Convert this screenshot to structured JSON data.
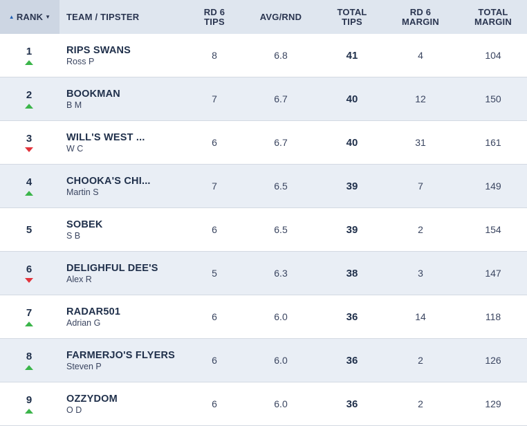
{
  "header": {
    "rank": "RANK",
    "team": "TEAM / TIPSTER",
    "rd_tips_1": "RD 6",
    "rd_tips_2": "TIPS",
    "avg": "AVG/RND",
    "total_1": "TOTAL",
    "total_2": "TIPS",
    "rd_margin_1": "RD 6",
    "rd_margin_2": "MARGIN",
    "total_margin_1": "TOTAL",
    "total_margin_2": "MARGIN"
  },
  "rows": [
    {
      "rank": "1",
      "trend": "up",
      "team": "RIPS SWANS",
      "tipster": "Ross P",
      "rd_tips": "8",
      "avg": "6.8",
      "total": "41",
      "rd_margin": "4",
      "total_margin": "104"
    },
    {
      "rank": "2",
      "trend": "up",
      "team": "BOOKMAN",
      "tipster": "B M",
      "rd_tips": "7",
      "avg": "6.7",
      "total": "40",
      "rd_margin": "12",
      "total_margin": "150"
    },
    {
      "rank": "3",
      "trend": "down",
      "team": "WILL'S WEST ...",
      "tipster": "W C",
      "rd_tips": "6",
      "avg": "6.7",
      "total": "40",
      "rd_margin": "31",
      "total_margin": "161"
    },
    {
      "rank": "4",
      "trend": "up",
      "team": "CHOOKA'S CHI...",
      "tipster": "Martin S",
      "rd_tips": "7",
      "avg": "6.5",
      "total": "39",
      "rd_margin": "7",
      "total_margin": "149"
    },
    {
      "rank": "5",
      "trend": "none",
      "team": "SOBEK",
      "tipster": "S B",
      "rd_tips": "6",
      "avg": "6.5",
      "total": "39",
      "rd_margin": "2",
      "total_margin": "154"
    },
    {
      "rank": "6",
      "trend": "down",
      "team": "DELIGHFUL DEE'S",
      "tipster": "Alex R",
      "rd_tips": "5",
      "avg": "6.3",
      "total": "38",
      "rd_margin": "3",
      "total_margin": "147"
    },
    {
      "rank": "7",
      "trend": "up",
      "team": "RADAR501",
      "tipster": "Adrian G",
      "rd_tips": "6",
      "avg": "6.0",
      "total": "36",
      "rd_margin": "14",
      "total_margin": "118"
    },
    {
      "rank": "8",
      "trend": "up",
      "team": "FARMERJO'S FLYERS",
      "tipster": "Steven P",
      "rd_tips": "6",
      "avg": "6.0",
      "total": "36",
      "rd_margin": "2",
      "total_margin": "126"
    },
    {
      "rank": "9",
      "trend": "up",
      "team": "OZZYDOM",
      "tipster": "O D",
      "rd_tips": "6",
      "avg": "6.0",
      "total": "36",
      "rd_margin": "2",
      "total_margin": "129"
    }
  ],
  "colors": {
    "up": "#3bb54a",
    "down": "#e2333b",
    "header_bg": "#dfe6ef",
    "alt_row": "#e9eef5"
  }
}
